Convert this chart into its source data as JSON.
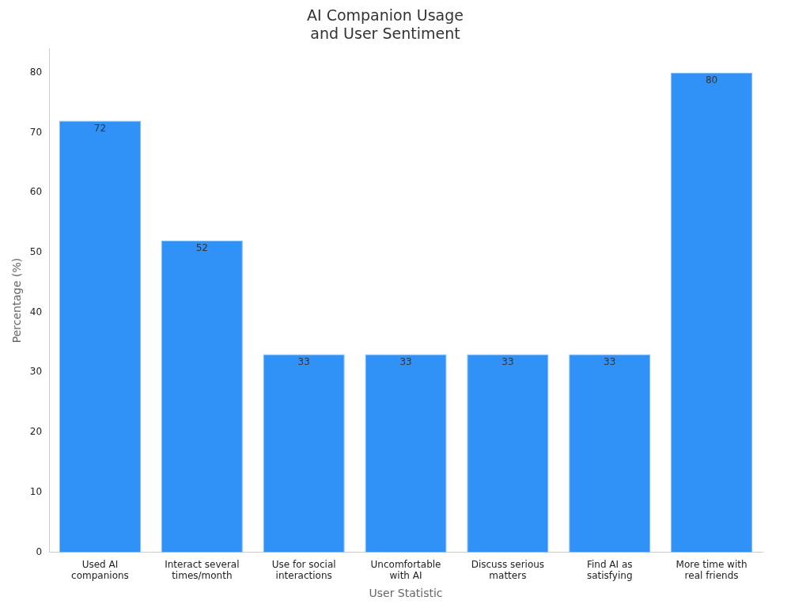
{
  "chart_data": {
    "type": "bar",
    "title": "AI Companion Usage and User Sentiment",
    "xlabel": "User Statistic",
    "ylabel": "Percentage (%)",
    "categories": [
      "Used AI companions",
      "Interact several times/month",
      "Use for social interactions",
      "Uncomfortable with AI",
      "Discuss serious matters",
      "Find AI as satisfying",
      "More time with real friends"
    ],
    "values": [
      72,
      52,
      33,
      33,
      33,
      33,
      80
    ],
    "color": "#3092f7",
    "ylim": [
      0,
      84
    ],
    "yticks": [
      0,
      10,
      20,
      30,
      40,
      50,
      60,
      70,
      80
    ],
    "grid": false,
    "legend": false,
    "data_labels": true
  }
}
